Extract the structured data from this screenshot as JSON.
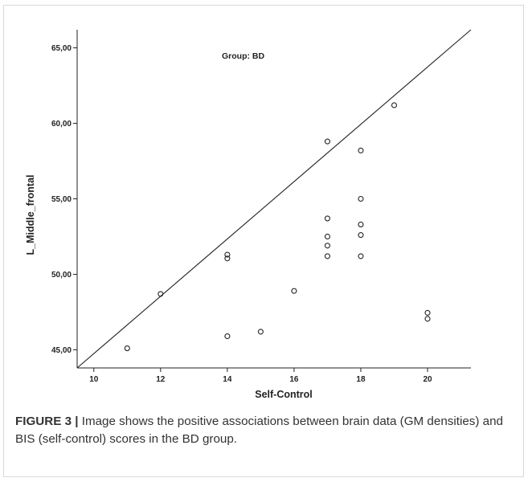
{
  "chart_data": {
    "type": "scatter",
    "annotation": "Group: BD",
    "xlabel": "Self-Control",
    "ylabel": "L_Middle_frontal",
    "xlim": [
      9.5,
      21.3
    ],
    "ylim": [
      43.8,
      66.2
    ],
    "x_ticks": [
      10,
      12,
      14,
      16,
      18,
      20
    ],
    "x_tick_labels": [
      "10",
      "12",
      "14",
      "16",
      "18",
      "20"
    ],
    "y_ticks": [
      45,
      50,
      55,
      60,
      65
    ],
    "y_tick_labels": [
      "45,00",
      "50,00",
      "55,00",
      "60,00",
      "65,00"
    ],
    "grid": false,
    "series": [
      {
        "marker": "open-circle",
        "points": [
          {
            "x": 11,
            "y": 45.1
          },
          {
            "x": 12,
            "y": 48.7
          },
          {
            "x": 14,
            "y": 51.3
          },
          {
            "x": 14,
            "y": 51.05
          },
          {
            "x": 14,
            "y": 45.9
          },
          {
            "x": 15,
            "y": 46.2
          },
          {
            "x": 16,
            "y": 48.9
          },
          {
            "x": 17,
            "y": 58.8
          },
          {
            "x": 17,
            "y": 53.7
          },
          {
            "x": 17,
            "y": 52.5
          },
          {
            "x": 17,
            "y": 51.9
          },
          {
            "x": 17,
            "y": 51.2
          },
          {
            "x": 18,
            "y": 58.2
          },
          {
            "x": 18,
            "y": 55.0
          },
          {
            "x": 18,
            "y": 53.3
          },
          {
            "x": 18,
            "y": 52.6
          },
          {
            "x": 18,
            "y": 51.2
          },
          {
            "x": 19,
            "y": 61.2
          },
          {
            "x": 20,
            "y": 47.45
          },
          {
            "x": 20,
            "y": 47.05
          }
        ]
      }
    ],
    "reference_line": {
      "from": {
        "x": 9.5,
        "y": 43.8
      },
      "to": {
        "x": 21.3,
        "y": 66.2
      }
    }
  },
  "caption": {
    "label": "FIGURE 3 |",
    "text": " Image shows the positive associations between brain data (GM densities) and BIS (self-control) scores in the BD group."
  },
  "colors": {
    "marks": "#222222",
    "caption_text": "#333333",
    "frame_border": "#d8d8d8"
  }
}
